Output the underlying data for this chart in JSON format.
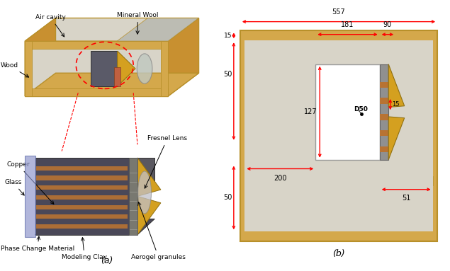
{
  "bg_color": "#ffffff",
  "wood_color": "#d4a84b",
  "wood_dark": "#b8902a",
  "wood_light": "#e8c870",
  "inner_bg": "#d8d4c8",
  "inner_light": "#e8e4d8",
  "gray_module": "#6a6a72",
  "gray_side": "#909090",
  "gray_mid": "#a8a8a0",
  "gold_color": "#d4a020",
  "copper_color": "#b87333",
  "glass_color": "#8890c8",
  "red_color": "#cc0000",
  "black": "#000000",
  "label_a": "(a)",
  "label_b": "(b)",
  "dim_557": "557",
  "dim_15": "15",
  "dim_50_top": "50",
  "dim_50_bot": "50",
  "dim_181": "181",
  "dim_90": "90",
  "dim_200": "200",
  "dim_127": "127",
  "dim_15b": "15",
  "dim_51": "51",
  "label_D50": "D50",
  "label_Air_cavity": "Air cavity",
  "label_Mineral_Wool": "Mineral Wool",
  "label_Wood": "Wood",
  "label_Copper": "Copper",
  "label_Fresnel_Lens": "Fresnel Lens",
  "label_Glass": "Glass",
  "label_Phase_Change": "Phase Change Material",
  "label_Modeling_Clay": "Modeling Clay",
  "label_Aerogel": "Aerogel granules"
}
